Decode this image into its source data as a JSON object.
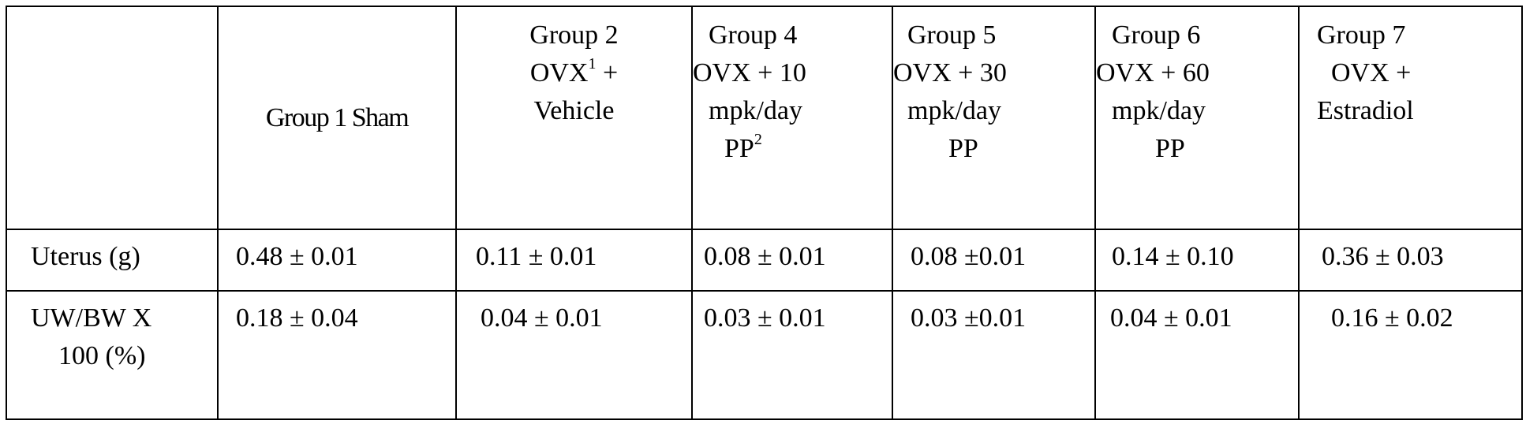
{
  "table": {
    "header": {
      "corner": "",
      "group1": {
        "line1": "Group 1 Sham"
      },
      "group2": {
        "line1": "Group 2",
        "line2_main": "OVX",
        "line2_sup": "1",
        "line2_tail": " +",
        "line3": "Vehicle"
      },
      "group4": {
        "line1": "Group 4",
        "line2": "OVX + 10",
        "line3": "mpk/day",
        "line4_main": "PP",
        "line4_sup": "2"
      },
      "group5": {
        "line1": "Group 5",
        "line2": "OVX + 30",
        "line3": "mpk/day",
        "line4": "PP"
      },
      "group6": {
        "line1": "Group 6",
        "line2": "OVX + 60",
        "line3": "mpk/day",
        "line4": "PP"
      },
      "group7": {
        "line1": "Group 7",
        "line2": "OVX +",
        "line3": "Estradiol"
      }
    },
    "rows": {
      "uterus": {
        "label": "Uterus (g)",
        "values": [
          "0.48 ± 0.01",
          "0.11 ± 0.01",
          "0.08 ± 0.01",
          "0.08 ±0.01",
          "0.14 ± 0.10",
          "0.36 ± 0.03"
        ]
      },
      "ratio": {
        "label_line1": "UW/BW X",
        "label_line2": "100 (%)",
        "values": [
          "0.18 ± 0.04",
          "0.04 ± 0.01",
          "0.03 ± 0.01",
          "0.03 ±0.01",
          "0.04 ± 0.01",
          "0.16 ± 0.02"
        ]
      }
    }
  }
}
